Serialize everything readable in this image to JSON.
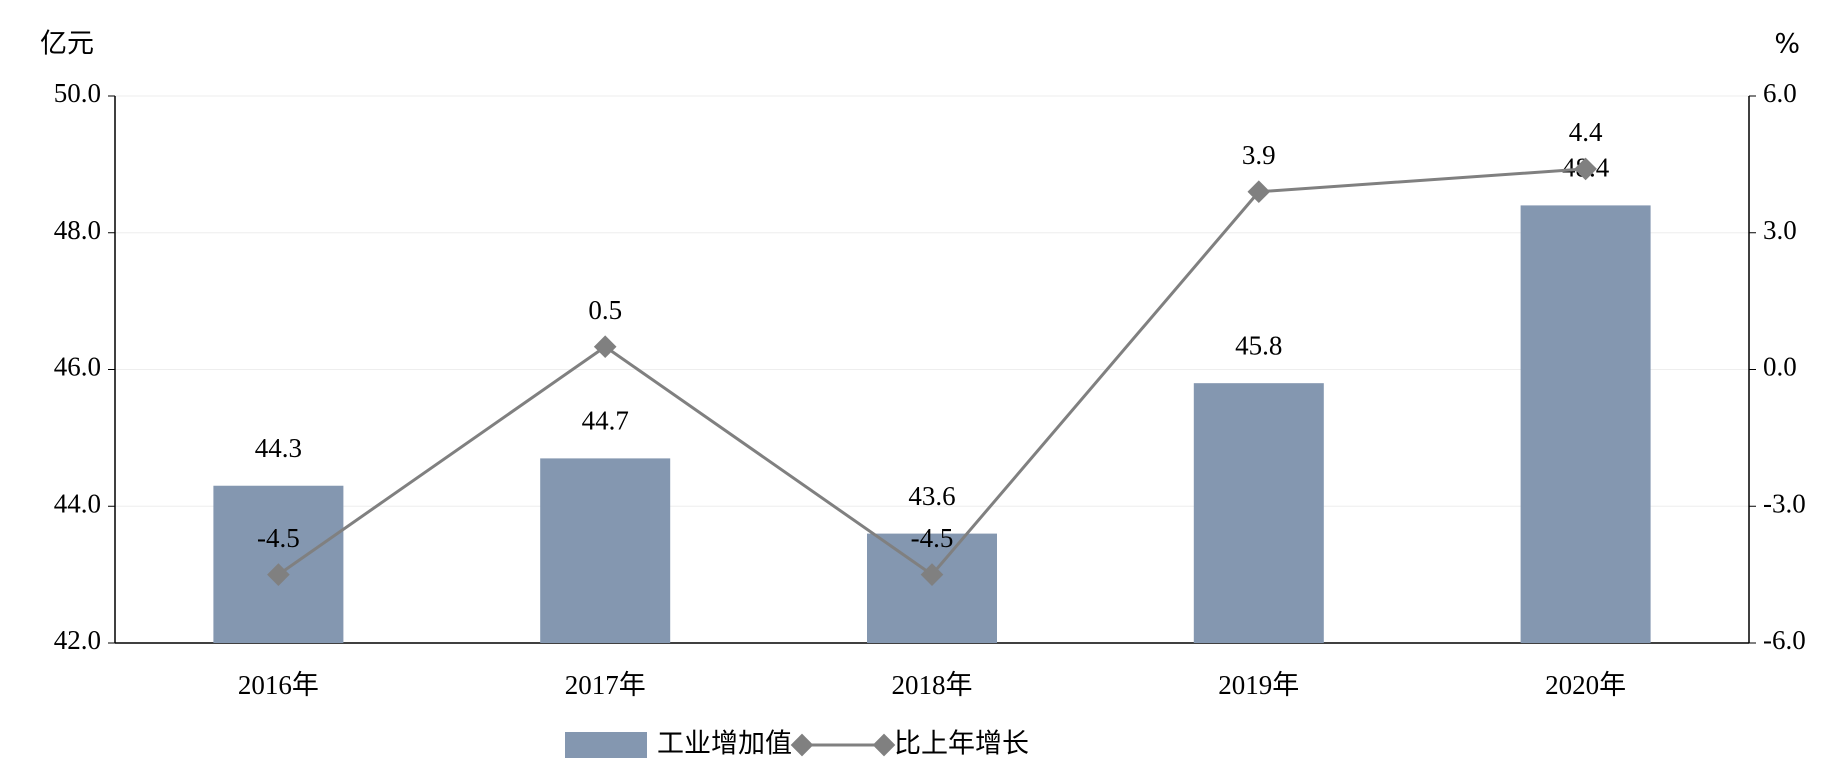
{
  "chart_data": {
    "type": "bar-line",
    "y_label": "亿元",
    "y2_label": "%",
    "categories": [
      "2016年",
      "2017年",
      "2018年",
      "2019年",
      "2020年"
    ],
    "series": [
      {
        "name": "工业增加值",
        "type": "bar",
        "color": "#8497b0",
        "values": [
          44.3,
          44.7,
          43.6,
          45.8,
          48.4
        ]
      },
      {
        "name": "比上年增长",
        "type": "line",
        "axis": "y2",
        "color": "#808080",
        "values": [
          -4.5,
          0.5,
          -4.5,
          3.9,
          4.4
        ]
      }
    ],
    "ylim": [
      42,
      50
    ],
    "yticks": [
      {
        "value": 42,
        "label": "42.0"
      },
      {
        "value": 44,
        "label": "44.0"
      },
      {
        "value": 46,
        "label": "46.0"
      },
      {
        "value": 48,
        "label": "48.0"
      },
      {
        "value": 50,
        "label": "50.0"
      }
    ],
    "y2lim": [
      -6,
      6
    ],
    "y2ticks": [
      {
        "value": -6,
        "label": "-6.0"
      },
      {
        "value": -3,
        "label": "-3.0"
      },
      {
        "value": 0,
        "label": "0.0"
      },
      {
        "value": 3,
        "label": "3.0"
      },
      {
        "value": 6,
        "label": "6.0"
      }
    ],
    "grid": true
  }
}
